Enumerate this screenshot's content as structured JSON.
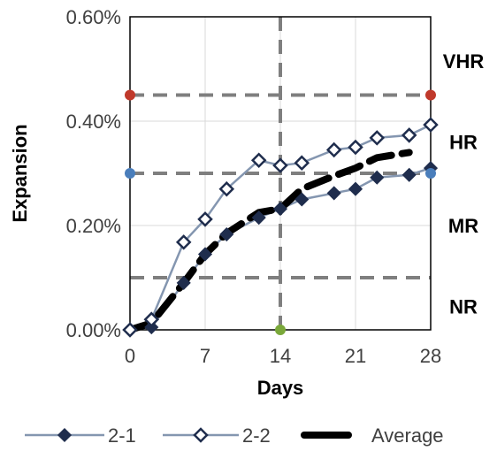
{
  "chart_data": {
    "type": "line",
    "xlabel": "Days",
    "ylabel": "Expansion",
    "xlim": [
      0,
      28
    ],
    "ylim": [
      0,
      0.6
    ],
    "x_ticks": [
      "0",
      "7",
      "14",
      "21",
      "28"
    ],
    "x_tick_values": [
      0,
      7,
      14,
      21,
      28
    ],
    "y_ticks": [
      "0.00%",
      "0.20%",
      "0.40%",
      "0.60%"
    ],
    "y_tick_values": [
      0,
      0.2,
      0.4,
      0.6
    ],
    "grid": true,
    "legend_placement": "bottom",
    "series": [
      {
        "name": "2-1",
        "color": "#1f2d4d",
        "marker": "filled-diamond",
        "x": [
          0,
          2,
          5,
          7,
          9,
          12,
          14,
          16,
          19,
          21,
          23,
          26,
          28
        ],
        "y": [
          0.0,
          0.005,
          0.09,
          0.145,
          0.183,
          0.215,
          0.232,
          0.25,
          0.262,
          0.27,
          0.292,
          0.297,
          0.31
        ]
      },
      {
        "name": "2-2",
        "color": "#1f2d4d",
        "marker": "open-diamond",
        "x": [
          0,
          2,
          5,
          7,
          9,
          12,
          14,
          16,
          19,
          21,
          23,
          26,
          28
        ],
        "y": [
          0.0,
          0.02,
          0.168,
          0.212,
          0.27,
          0.325,
          0.315,
          0.32,
          0.345,
          0.35,
          0.368,
          0.373,
          0.393
        ]
      },
      {
        "name": "Average",
        "color": "#000000",
        "style": "thick-dashed",
        "x": [
          0,
          2,
          5,
          7,
          9,
          12,
          14,
          16,
          19,
          21,
          23,
          26
        ],
        "y": [
          0.0,
          0.013,
          0.09,
          0.145,
          0.185,
          0.225,
          0.232,
          0.27,
          0.295,
          0.31,
          0.33,
          0.34
        ]
      }
    ],
    "reference_lines": {
      "horizontal": [
        0.1,
        0.3,
        0.45
      ],
      "vertical": [
        14
      ]
    },
    "reference_markers": [
      {
        "x": 0,
        "y": 0.45,
        "color": "#c0392b"
      },
      {
        "x": 28,
        "y": 0.45,
        "color": "#c0392b"
      },
      {
        "x": 0,
        "y": 0.3,
        "color": "#4a7ebb"
      },
      {
        "x": 28,
        "y": 0.3,
        "color": "#4a7ebb"
      },
      {
        "x": 14,
        "y": 0.0,
        "color": "#7aa83a"
      }
    ],
    "zone_labels": [
      {
        "text": "VHR",
        "y": 0.515
      },
      {
        "text": "HR",
        "y": 0.36
      },
      {
        "text": "MR",
        "y": 0.2
      },
      {
        "text": "NR",
        "y": 0.045
      }
    ]
  }
}
